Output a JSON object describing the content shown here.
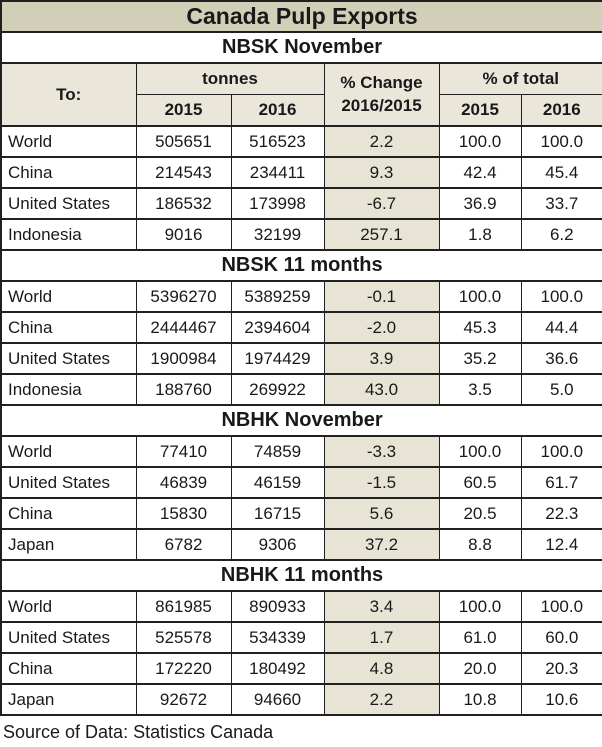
{
  "title": "Canada Pulp Exports",
  "header": {
    "to": "To:",
    "tonnes": "tonnes",
    "change_line1": "% Change",
    "change_line2": "2016/2015",
    "pct_total": "% of total",
    "year_2015": "2015",
    "year_2016": "2016"
  },
  "footer": {
    "source": "Source of Data: Statistics Canada"
  },
  "colors": {
    "title_bg": "#d2cfb9",
    "header_bg": "#eae7da",
    "change_bg": "#e7e4d5",
    "border": "#202020"
  },
  "chart_data": {
    "type": "table",
    "title": "Canada Pulp Exports",
    "columns": [
      "To:",
      "tonnes 2015",
      "tonnes 2016",
      "% Change 2016/2015",
      "% of total 2015",
      "% of total 2016"
    ],
    "sections": [
      {
        "heading": "NBSK November",
        "rows": [
          {
            "to": "World",
            "tonnes_2015": "505651",
            "tonnes_2016": "516523",
            "pct_change": "2.2",
            "pct_total_2015": "100.0",
            "pct_total_2016": "100.0"
          },
          {
            "to": "China",
            "tonnes_2015": "214543",
            "tonnes_2016": "234411",
            "pct_change": "9.3",
            "pct_total_2015": "42.4",
            "pct_total_2016": "45.4"
          },
          {
            "to": "United States",
            "tonnes_2015": "186532",
            "tonnes_2016": "173998",
            "pct_change": "-6.7",
            "pct_total_2015": "36.9",
            "pct_total_2016": "33.7"
          },
          {
            "to": "Indonesia",
            "tonnes_2015": "9016",
            "tonnes_2016": "32199",
            "pct_change": "257.1",
            "pct_total_2015": "1.8",
            "pct_total_2016": "6.2"
          }
        ]
      },
      {
        "heading": "NBSK 11 months",
        "rows": [
          {
            "to": "World",
            "tonnes_2015": "5396270",
            "tonnes_2016": "5389259",
            "pct_change": "-0.1",
            "pct_total_2015": "100.0",
            "pct_total_2016": "100.0"
          },
          {
            "to": "China",
            "tonnes_2015": "2444467",
            "tonnes_2016": "2394604",
            "pct_change": "-2.0",
            "pct_total_2015": "45.3",
            "pct_total_2016": "44.4"
          },
          {
            "to": "United States",
            "tonnes_2015": "1900984",
            "tonnes_2016": "1974429",
            "pct_change": "3.9",
            "pct_total_2015": "35.2",
            "pct_total_2016": "36.6"
          },
          {
            "to": "Indonesia",
            "tonnes_2015": "188760",
            "tonnes_2016": "269922",
            "pct_change": "43.0",
            "pct_total_2015": "3.5",
            "pct_total_2016": "5.0"
          }
        ]
      },
      {
        "heading": "NBHK November",
        "rows": [
          {
            "to": "World",
            "tonnes_2015": "77410",
            "tonnes_2016": "74859",
            "pct_change": "-3.3",
            "pct_total_2015": "100.0",
            "pct_total_2016": "100.0"
          },
          {
            "to": "United States",
            "tonnes_2015": "46839",
            "tonnes_2016": "46159",
            "pct_change": "-1.5",
            "pct_total_2015": "60.5",
            "pct_total_2016": "61.7"
          },
          {
            "to": "China",
            "tonnes_2015": "15830",
            "tonnes_2016": "16715",
            "pct_change": "5.6",
            "pct_total_2015": "20.5",
            "pct_total_2016": "22.3"
          },
          {
            "to": "Japan",
            "tonnes_2015": "6782",
            "tonnes_2016": "9306",
            "pct_change": "37.2",
            "pct_total_2015": "8.8",
            "pct_total_2016": "12.4"
          }
        ]
      },
      {
        "heading": "NBHK 11 months",
        "rows": [
          {
            "to": "World",
            "tonnes_2015": "861985",
            "tonnes_2016": "890933",
            "pct_change": "3.4",
            "pct_total_2015": "100.0",
            "pct_total_2016": "100.0"
          },
          {
            "to": "United States",
            "tonnes_2015": "525578",
            "tonnes_2016": "534339",
            "pct_change": "1.7",
            "pct_total_2015": "61.0",
            "pct_total_2016": "60.0"
          },
          {
            "to": "China",
            "tonnes_2015": "172220",
            "tonnes_2016": "180492",
            "pct_change": "4.8",
            "pct_total_2015": "20.0",
            "pct_total_2016": "20.3"
          },
          {
            "to": "Japan",
            "tonnes_2015": "92672",
            "tonnes_2016": "94660",
            "pct_change": "2.2",
            "pct_total_2015": "10.8",
            "pct_total_2016": "10.6"
          }
        ]
      }
    ]
  }
}
